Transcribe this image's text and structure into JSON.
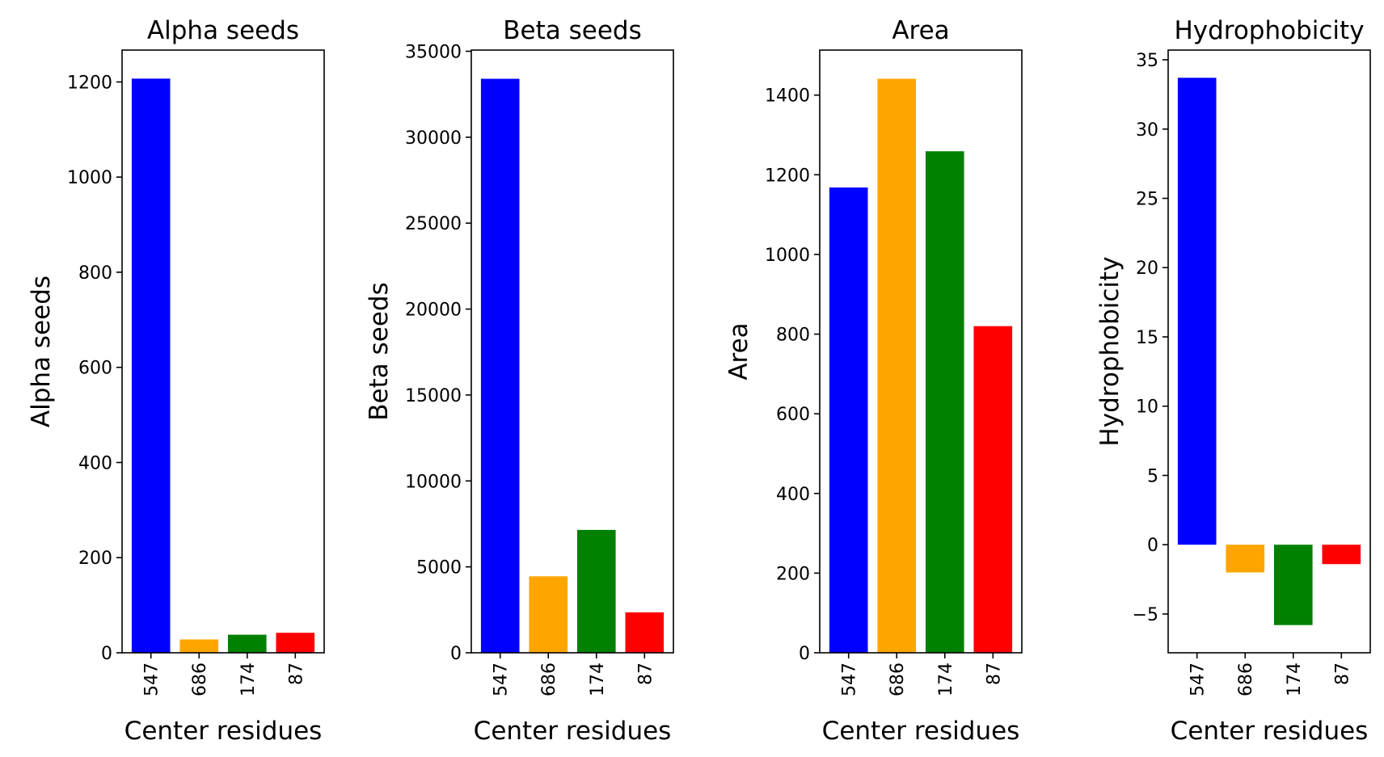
{
  "chart_data": [
    {
      "type": "bar",
      "title": "Alpha seeds",
      "xlabel": "Center residues",
      "ylabel": "Alpha seeds",
      "categories": [
        "547",
        "686",
        "174",
        "87"
      ],
      "values": [
        1207,
        28,
        38,
        42
      ],
      "colors": [
        "#0000ff",
        "#ffa500",
        "#008000",
        "#ff0000"
      ],
      "ylim": [
        0,
        1267
      ],
      "yticks": [
        0,
        200,
        400,
        600,
        800,
        1000,
        1200
      ],
      "ytick_labels": [
        "0",
        "200",
        "400",
        "600",
        "800",
        "1000",
        "1200"
      ],
      "grid": false
    },
    {
      "type": "bar",
      "title": "Beta seeds",
      "xlabel": "Center residues",
      "ylabel": "Beta seeds",
      "categories": [
        "547",
        "686",
        "174",
        "87"
      ],
      "values": [
        33400,
        4450,
        7150,
        2350
      ],
      "colors": [
        "#0000ff",
        "#ffa500",
        "#008000",
        "#ff0000"
      ],
      "ylim": [
        0,
        35070
      ],
      "yticks": [
        0,
        5000,
        10000,
        15000,
        20000,
        25000,
        30000,
        35000
      ],
      "ytick_labels": [
        "0",
        "5000",
        "10000",
        "15000",
        "20000",
        "25000",
        "30000",
        "35000"
      ],
      "grid": false
    },
    {
      "type": "bar",
      "title": "Area",
      "xlabel": "Center residues",
      "ylabel": "Area",
      "categories": [
        "547",
        "686",
        "174",
        "87"
      ],
      "values": [
        1168,
        1441,
        1259,
        820
      ],
      "colors": [
        "#0000ff",
        "#ffa500",
        "#008000",
        "#ff0000"
      ],
      "ylim": [
        0,
        1513
      ],
      "yticks": [
        0,
        200,
        400,
        600,
        800,
        1000,
        1200,
        1400
      ],
      "ytick_labels": [
        "0",
        "200",
        "400",
        "600",
        "800",
        "1000",
        "1200",
        "1400"
      ],
      "grid": false
    },
    {
      "type": "bar",
      "title": "Hydrophobicity",
      "xlabel": "Center residues",
      "ylabel": "Hydrophobicity",
      "categories": [
        "547",
        "686",
        "174",
        "87"
      ],
      "values": [
        33.7,
        -2.0,
        -5.8,
        -1.4
      ],
      "colors": [
        "#0000ff",
        "#ffa500",
        "#008000",
        "#ff0000"
      ],
      "ylim": [
        -7.8,
        35.7
      ],
      "yticks": [
        -5,
        0,
        5,
        10,
        15,
        20,
        25,
        30,
        35
      ],
      "ytick_labels": [
        "−5",
        "0",
        "5",
        "10",
        "15",
        "20",
        "25",
        "30",
        "35"
      ],
      "grid": false
    }
  ]
}
